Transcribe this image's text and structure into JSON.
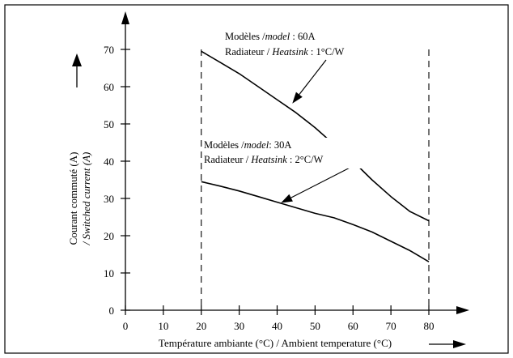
{
  "chart_data": {
    "type": "line",
    "title": "",
    "xlabel": "Température ambiante (°C) / Ambient temperature (°C)",
    "ylabel": {
      "line1": "Courant commuté (A)",
      "line2": "/ Switched current (A)"
    },
    "xlim": [
      0,
      80
    ],
    "ylim": [
      0,
      70
    ],
    "x_ticks": [
      "0",
      "10",
      "20",
      "30",
      "40",
      "50",
      "60",
      "70",
      "80"
    ],
    "y_ticks": [
      "0",
      "10",
      "20",
      "30",
      "40",
      "50",
      "60",
      "70"
    ],
    "grid": false,
    "reference_lines_x": [
      20,
      80
    ],
    "series": [
      {
        "x": [
          20,
          25,
          30,
          35,
          40,
          45,
          50,
          55,
          60,
          65,
          70,
          75,
          80
        ],
        "y": [
          69.5,
          66.5,
          63.5,
          60,
          56.5,
          53,
          49,
          44.5,
          40,
          35,
          30.5,
          26.5,
          24
        ]
      },
      {
        "x": [
          20,
          25,
          30,
          35,
          40,
          45,
          50,
          55,
          60,
          65,
          70,
          75,
          80
        ],
        "y": [
          34.5,
          33.3,
          32,
          30.5,
          29,
          27.5,
          26,
          24.8,
          23,
          21,
          18.5,
          16,
          13
        ]
      }
    ],
    "annotations": [
      {
        "model_prefix": "Modèles /",
        "model_italic": "model",
        "model_value": " : 60A",
        "heatsink_prefix": "Radiateur / ",
        "heatsink_italic": "Heatsink",
        "heatsink_value": " : 1°C/W",
        "target_x": 44,
        "target_y": 55.5
      },
      {
        "model_prefix": "Modèles /",
        "model_italic": "model",
        "model_value": ": 30A",
        "heatsink_prefix": "Radiateur / ",
        "heatsink_italic": "Heatsink",
        "heatsink_value": " :  2°C/W",
        "target_x": 41,
        "target_y": 28.8
      }
    ]
  }
}
